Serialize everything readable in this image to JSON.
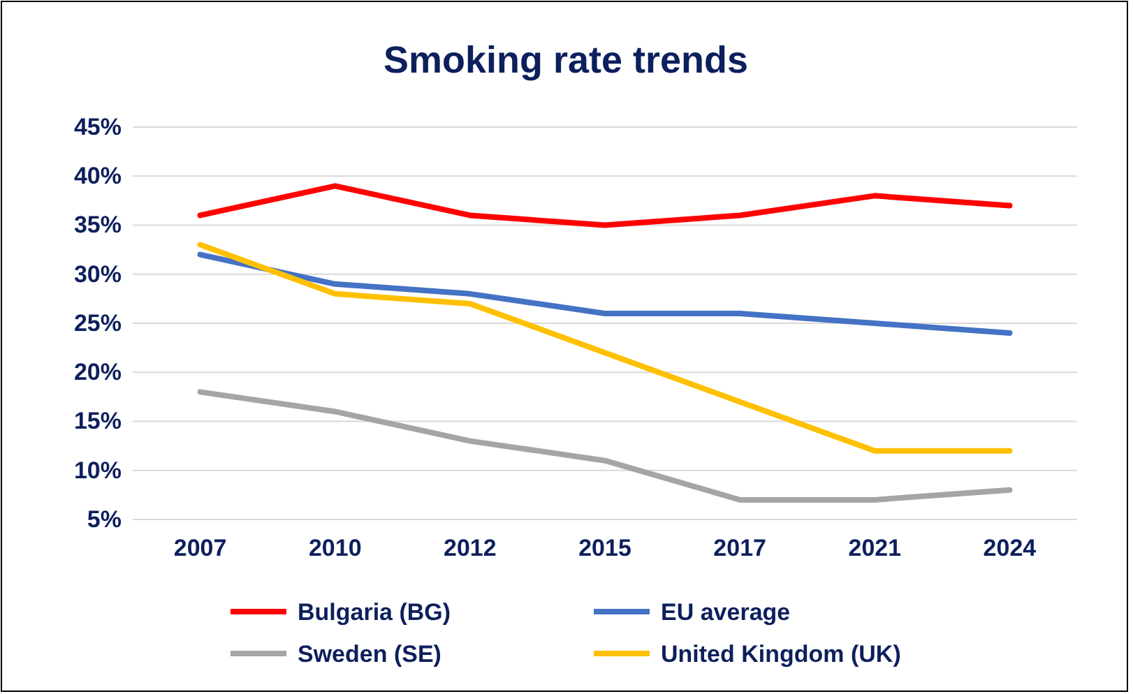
{
  "chart_data": {
    "type": "line",
    "title": "Smoking rate trends",
    "categories": [
      "2007",
      "2010",
      "2012",
      "2015",
      "2017",
      "2021",
      "2024"
    ],
    "series": [
      {
        "name": "Bulgaria (BG)",
        "color": "#ff0000",
        "values": [
          36,
          39,
          36,
          35,
          36,
          38,
          37
        ]
      },
      {
        "name": "EU average",
        "color": "#4472c4",
        "values": [
          32,
          29,
          28,
          26,
          26,
          25,
          24
        ]
      },
      {
        "name": "Sweden (SE)",
        "color": "#a5a5a5",
        "values": [
          18,
          16,
          13,
          11,
          7,
          7,
          8
        ]
      },
      {
        "name": "United Kingdom (UK)",
        "color": "#ffc000",
        "values": [
          33,
          28,
          27,
          22,
          17,
          12,
          12
        ]
      }
    ],
    "ylim": [
      5,
      45
    ],
    "yticks": [
      {
        "value": 5,
        "label": "5%"
      },
      {
        "value": 10,
        "label": "10%"
      },
      {
        "value": 15,
        "label": "15%"
      },
      {
        "value": 20,
        "label": "20%"
      },
      {
        "value": 25,
        "label": "25%"
      },
      {
        "value": 30,
        "label": "30%"
      },
      {
        "value": 35,
        "label": "35%"
      },
      {
        "value": 40,
        "label": "40%"
      },
      {
        "value": 45,
        "label": "45%"
      }
    ],
    "grid": "y",
    "legend": "bottom",
    "marker": "none",
    "line_style": "solid"
  }
}
